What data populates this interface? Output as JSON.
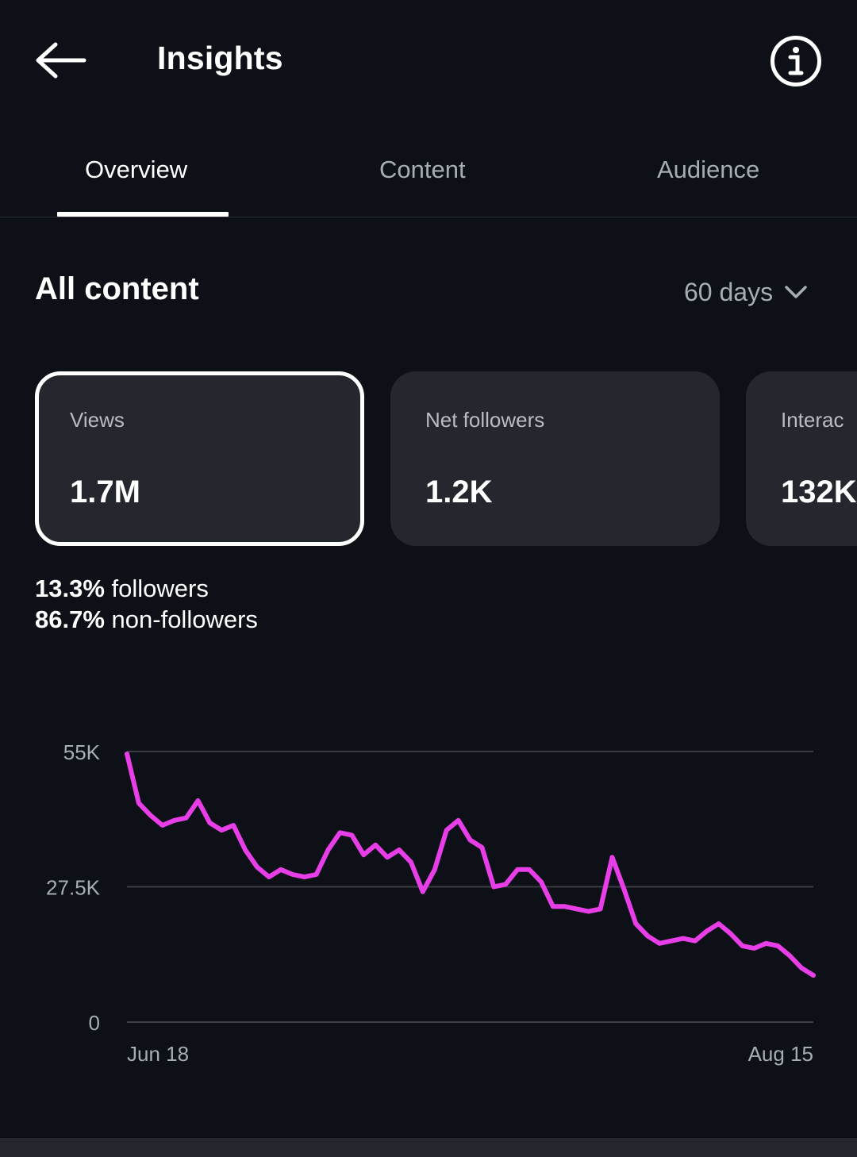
{
  "header": {
    "title": "Insights",
    "back_icon": "arrow-left-icon",
    "info_icon": "info-icon"
  },
  "tabs": [
    {
      "label": "Overview",
      "active": true
    },
    {
      "label": "Content",
      "active": false
    },
    {
      "label": "Audience",
      "active": false
    }
  ],
  "section": {
    "title": "All content",
    "range": "60 days",
    "range_icon": "chevron-down-icon"
  },
  "cards": [
    {
      "label": "Views",
      "value": "1.7M",
      "selected": true
    },
    {
      "label": "Net followers",
      "value": "1.2K",
      "selected": false
    },
    {
      "label": "Interac",
      "value": "132K",
      "selected": false
    }
  ],
  "breakdown": [
    {
      "percent": "13.3%",
      "label": "followers"
    },
    {
      "percent": "86.7%",
      "label": "non-followers"
    }
  ],
  "colors": {
    "background": "#0d1016",
    "card": "#24272d",
    "line": "#e83ee8",
    "grid": "#3a3d43",
    "muted_text": "#a8acb3"
  },
  "chart_data": {
    "type": "line",
    "y_ticks": [
      "55K",
      "27.5K",
      "0"
    ],
    "x_ticks": [
      "Jun 18",
      "Aug 15"
    ],
    "ylim": [
      0,
      55000
    ],
    "grid": true,
    "series": [
      {
        "values": [
          54500,
          44500,
          42000,
          40000,
          41000,
          41500,
          45000,
          40500,
          39000,
          40000,
          35000,
          31500,
          29500,
          31000,
          30000,
          29500,
          30000,
          35000,
          38500,
          38000,
          34000,
          36000,
          33500,
          35000,
          32500,
          26500,
          31000,
          39000,
          41000,
          37000,
          35500,
          27500,
          28000,
          31000,
          31000,
          28500,
          23500,
          23500,
          23000,
          22500,
          23000,
          33500,
          27000,
          20000,
          17500,
          16000,
          16500,
          17000,
          16500,
          18500,
          20000,
          18000,
          15500,
          15000,
          16000,
          15500,
          13500,
          11000,
          9500
        ]
      }
    ]
  }
}
